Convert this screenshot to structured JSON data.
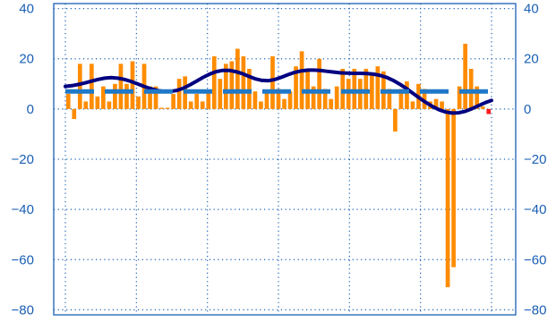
{
  "chart_data": {
    "type": "bar",
    "title": "",
    "xlabel": "",
    "ylabel": "",
    "ylim": [
      -82,
      42
    ],
    "y_ticks": [
      40,
      20,
      0,
      -20,
      -40,
      -60,
      -80
    ],
    "y_tick_labels": [
      "40",
      "20",
      "0",
      "−20",
      "−40",
      "−60",
      "−80"
    ],
    "x_tick_count": 7,
    "grid": true,
    "colors": {
      "bars": "#ff8c00",
      "last_bar": "#ff1a1a",
      "smooth_line": "#000080",
      "mean_line": "#1f78c8",
      "axis": "#1a5fb4",
      "grid": "#1a5fb4"
    },
    "bars": [
      6,
      -4,
      18,
      3,
      18,
      5,
      9,
      3,
      10,
      18,
      10,
      19,
      5,
      18,
      9,
      9,
      0.5,
      0.5,
      6,
      12,
      13,
      3,
      6,
      3,
      7,
      21,
      12,
      18,
      19,
      24,
      21,
      16,
      7,
      3,
      7,
      21,
      8,
      4,
      7,
      17,
      23,
      16,
      9,
      20,
      8,
      4,
      9,
      16,
      12,
      16,
      12,
      16,
      14,
      17,
      15,
      8,
      -9,
      8,
      11,
      3,
      10,
      8,
      3,
      4,
      3,
      -71,
      -63,
      9,
      26,
      16,
      9,
      1,
      -2
    ],
    "series": [
      {
        "type": "line",
        "values": [
          9,
          9.3,
          9.8,
          10.4,
          11.1,
          11.8,
          12.3,
          12.5,
          12.3,
          11.8,
          11,
          10,
          9,
          8.1,
          7.4,
          7,
          7,
          7.4,
          8.3,
          9.6,
          11.1,
          12.6,
          13.9,
          14.9,
          15.4,
          15.4,
          14.9,
          14.1,
          13,
          12,
          11.4,
          11.3,
          11.8,
          12.7,
          13.7,
          14.6,
          15.2,
          15.5,
          15.5,
          15.3,
          15,
          14.7,
          14.4,
          14.3,
          14.2,
          14.2,
          14.1,
          13.9,
          13.4,
          12.6,
          11.4,
          9.9,
          8.2,
          6.3,
          4.4,
          2.6,
          1,
          -0.3,
          -1.2,
          -1.6,
          -1.5,
          -0.9,
          0.1,
          1.3,
          2.5,
          3.4
        ]
      },
      {
        "type": "line-dashed",
        "values": [
          7,
          7
        ]
      }
    ]
  }
}
